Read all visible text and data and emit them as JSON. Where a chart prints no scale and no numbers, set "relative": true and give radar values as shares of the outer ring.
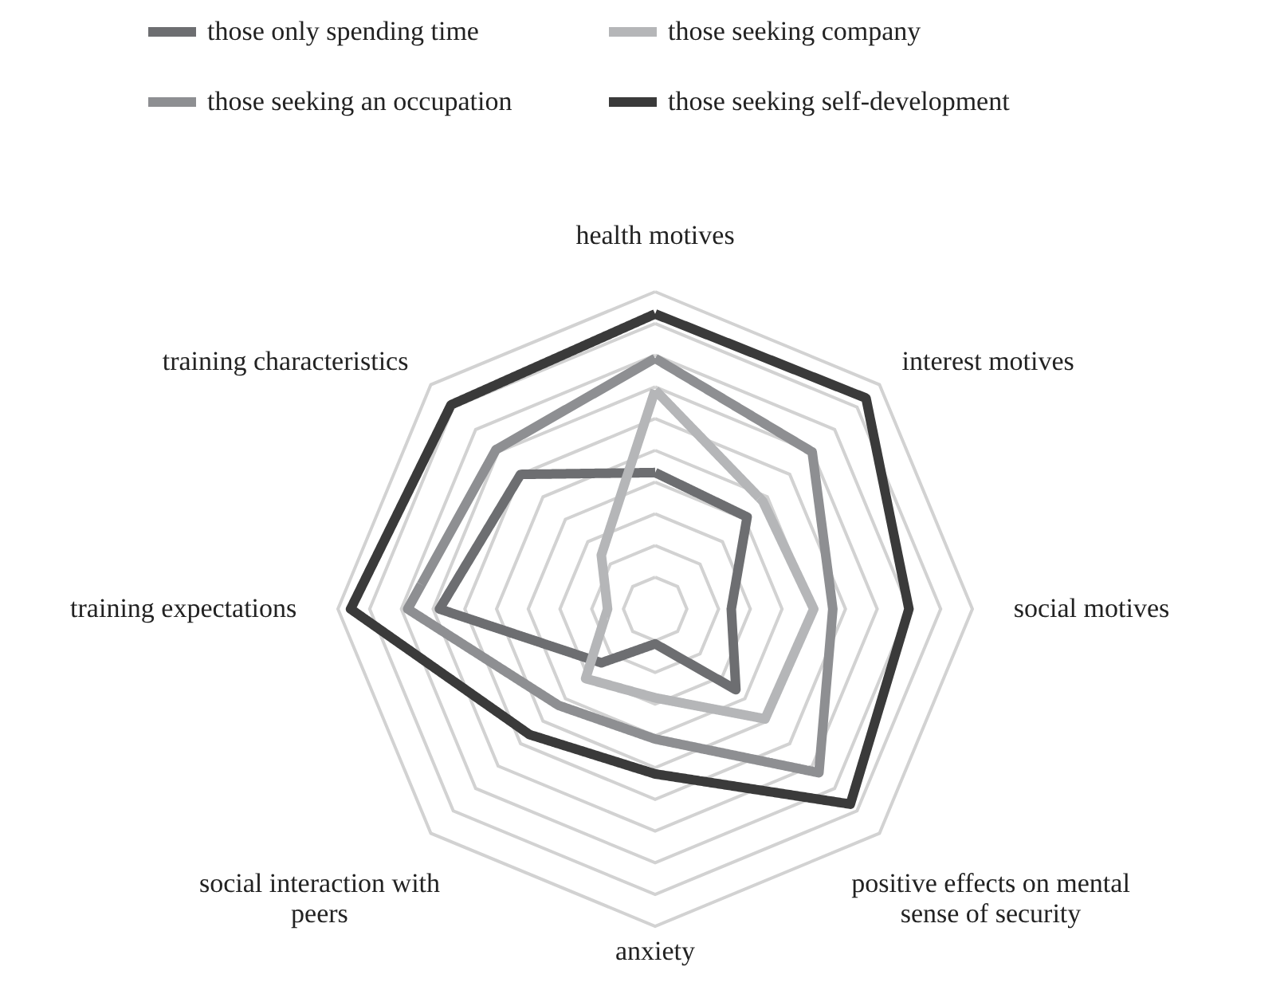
{
  "chart_data": {
    "type": "radar",
    "relative": true,
    "grid": true,
    "legend": "top",
    "line_style": "solid",
    "marker": "none",
    "categories": [
      "health motives",
      "interest motives",
      "social motives",
      "positive effects on mental\nsense of security",
      "anxiety",
      "social interaction with\npeers",
      "training expectations",
      "training characteristics"
    ],
    "series": [
      {
        "name": "those only spending time",
        "color": "#6d6e71",
        "values": [
          0.43,
          0.41,
          0.24,
          0.36,
          0.11,
          0.24,
          0.68,
          0.6
        ]
      },
      {
        "name": "those seeking an occupation",
        "color": "#8e8f92",
        "values": [
          0.79,
          0.7,
          0.56,
          0.73,
          0.41,
          0.43,
          0.78,
          0.71
        ]
      },
      {
        "name": "those seeking company",
        "color": "#b5b6b8",
        "values": [
          0.69,
          0.48,
          0.5,
          0.49,
          0.28,
          0.31,
          0.15,
          0.24
        ]
      },
      {
        "name": "those seeking self-development",
        "color": "#3a3a3a",
        "values": [
          0.93,
          0.94,
          0.8,
          0.87,
          0.52,
          0.56,
          0.96,
          0.91
        ]
      }
    ]
  }
}
